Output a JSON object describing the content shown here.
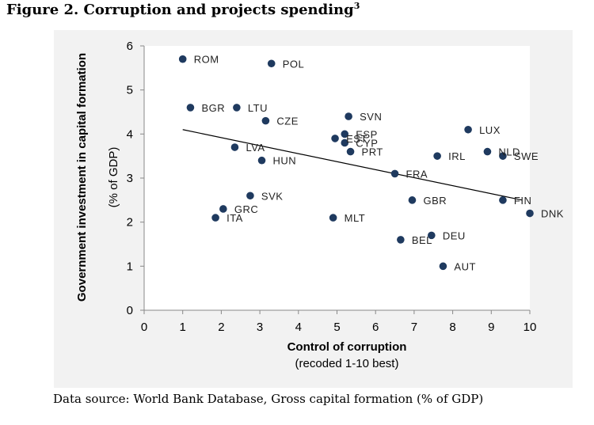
{
  "figure": {
    "title": "Figure 2. Corruption and projects spending",
    "title_sup": "3",
    "source": "Data source: World Bank Database, Gross capital formation (% of GDP)"
  },
  "chart_data": {
    "type": "scatter",
    "xlabel": "Control of corruption",
    "xlabel_sub": "(recoded 1-10 best)",
    "ylabel": "Government investment in capital formation",
    "ylabel_sub": "(% of GDP)",
    "xlim": [
      0,
      10
    ],
    "ylim": [
      0,
      6
    ],
    "xticks": [
      0,
      1,
      2,
      3,
      4,
      5,
      6,
      7,
      8,
      9,
      10
    ],
    "yticks": [
      0,
      1,
      2,
      3,
      4,
      5,
      6
    ],
    "grid": false,
    "colors": {
      "point": "#1f3a5f",
      "trend": "#000000",
      "plot_bg": "#f2f2f2"
    },
    "points": [
      {
        "label": "ROM",
        "x": 1.0,
        "y": 5.7
      },
      {
        "label": "POL",
        "x": 3.3,
        "y": 5.6
      },
      {
        "label": "BGR",
        "x": 1.2,
        "y": 4.6
      },
      {
        "label": "LTU",
        "x": 2.4,
        "y": 4.6
      },
      {
        "label": "CZE",
        "x": 3.15,
        "y": 4.3
      },
      {
        "label": "SVN",
        "x": 5.3,
        "y": 4.4
      },
      {
        "label": "ESP",
        "x": 5.2,
        "y": 4.0
      },
      {
        "label": "EST",
        "x": 4.95,
        "y": 3.9
      },
      {
        "label": "CYP",
        "x": 5.2,
        "y": 3.8
      },
      {
        "label": "PRT",
        "x": 5.35,
        "y": 3.6
      },
      {
        "label": "LUX",
        "x": 8.4,
        "y": 4.1
      },
      {
        "label": "LVA",
        "x": 2.35,
        "y": 3.7
      },
      {
        "label": "HUN",
        "x": 3.05,
        "y": 3.4
      },
      {
        "label": "IRL",
        "x": 7.6,
        "y": 3.5
      },
      {
        "label": "NLD",
        "x": 8.9,
        "y": 3.6
      },
      {
        "label": "SWE",
        "x": 9.3,
        "y": 3.5
      },
      {
        "label": "FRA",
        "x": 6.5,
        "y": 3.1
      },
      {
        "label": "SVK",
        "x": 2.75,
        "y": 2.6
      },
      {
        "label": "GRC",
        "x": 2.05,
        "y": 2.3
      },
      {
        "label": "ITA",
        "x": 1.85,
        "y": 2.1
      },
      {
        "label": "MLT",
        "x": 4.9,
        "y": 2.1
      },
      {
        "label": "GBR",
        "x": 6.95,
        "y": 2.5
      },
      {
        "label": "FIN",
        "x": 9.3,
        "y": 2.5
      },
      {
        "label": "DNK",
        "x": 10.0,
        "y": 2.2
      },
      {
        "label": "DEU",
        "x": 7.45,
        "y": 1.7
      },
      {
        "label": "BEL",
        "x": 6.65,
        "y": 1.6
      },
      {
        "label": "AUT",
        "x": 7.75,
        "y": 1.0
      }
    ],
    "trendline": {
      "x1": 1.0,
      "y1": 4.1,
      "x2": 9.8,
      "y2": 2.5
    }
  }
}
